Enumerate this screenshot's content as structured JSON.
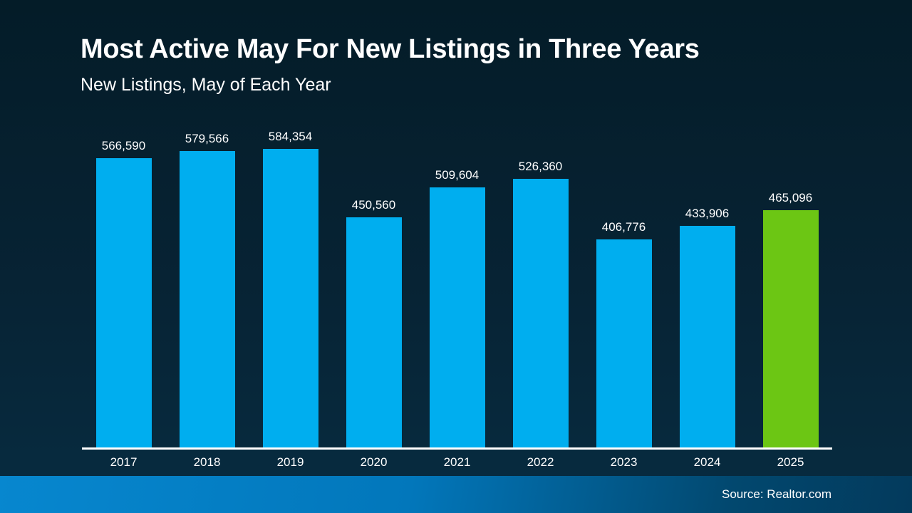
{
  "slide": {
    "title": "Most Active May For New Listings in Three Years",
    "subtitle": "New Listings, May of Each Year",
    "source": "Source: Realtor.com"
  },
  "colors": {
    "background_top": "#041c28",
    "background_bottom": "#072c41",
    "bar_blue": "#00AEEF",
    "bar_green": "#6CC614",
    "axis_line": "#ffffff",
    "text": "#ffffff",
    "footer_left": "#0787cf",
    "footer_right": "#033a5c"
  },
  "chart_data": {
    "type": "bar",
    "title": "Most Active May For New Listings in Three Years",
    "subtitle": "New Listings, May of Each Year",
    "xlabel": "",
    "ylabel": "",
    "categories": [
      "2017",
      "2018",
      "2019",
      "2020",
      "2021",
      "2022",
      "2023",
      "2024",
      "2025"
    ],
    "values": [
      566590,
      579566,
      584354,
      450560,
      509604,
      526360,
      406776,
      433906,
      465096
    ],
    "value_labels": [
      "566,590",
      "579,566",
      "584,354",
      "450,560",
      "509,604",
      "526,360",
      "406,776",
      "433,906",
      "465,096"
    ],
    "bar_color": "#00AEEF",
    "highlight_category": "2025",
    "highlight_color": "#6CC614",
    "ylim": [
      0,
      584354
    ],
    "grid": false,
    "legend": false,
    "value_labels_position": "above-bars"
  }
}
